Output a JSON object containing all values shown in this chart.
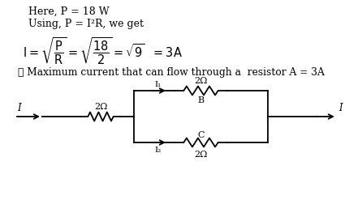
{
  "bg_color": "#ffffff",
  "line1": "Here, P = 18 W",
  "line2": "Using, P = I²R, we get",
  "therefore_line": "∴ Maximum current that can flow through a  resistor A = 3A",
  "label_2ohm_series": "2Ω",
  "label_I": "I",
  "label_I1": "I₁",
  "label_I2": "I₂",
  "label_2ohm_top": "2Ω",
  "label_B": "B",
  "label_2ohm_bot": "2Ω",
  "label_C": "C",
  "fig_width": 4.31,
  "fig_height": 2.53,
  "dpi": 100
}
